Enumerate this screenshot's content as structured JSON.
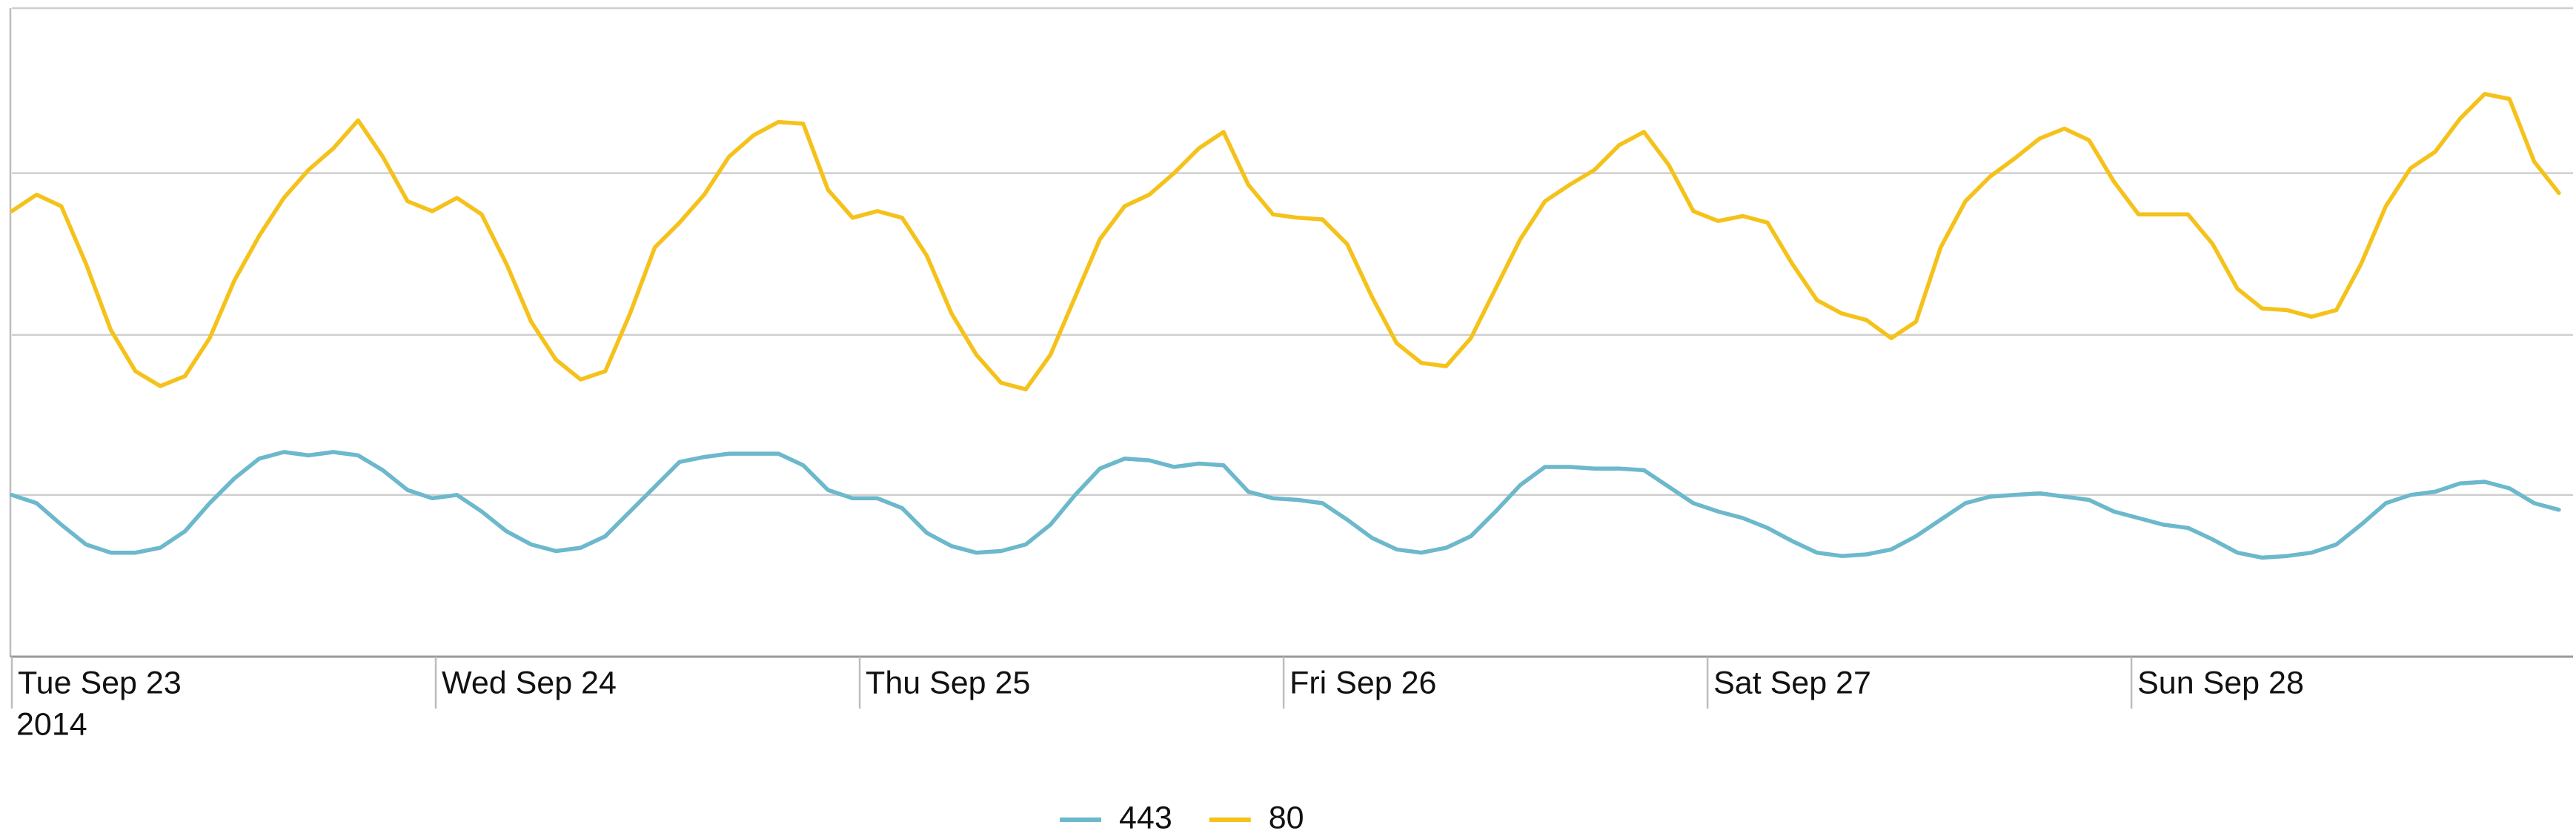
{
  "chart_data": {
    "type": "line",
    "x": [
      0,
      1.4,
      2.8,
      4.2,
      5.6,
      7,
      8.4,
      9.8,
      11.2,
      12.6,
      14,
      15.4,
      16.8,
      18.2,
      19.6,
      21,
      22.4,
      23.8,
      25.2,
      26.6,
      28,
      29.4,
      30.8,
      32.2,
      33.6,
      35,
      36.4,
      37.8,
      39.2,
      40.6,
      42,
      43.4,
      44.8,
      46.2,
      47.6,
      49,
      50.4,
      51.8,
      53.2,
      54.6,
      56,
      57.4,
      58.8,
      60.2,
      61.6,
      63,
      64.4,
      65.8,
      67.2,
      68.6,
      70,
      71.4,
      72.8,
      74.2,
      75.6,
      77,
      78.4,
      79.8,
      81.2,
      82.6,
      84,
      85.4,
      86.8,
      88.2,
      89.6,
      91,
      92.4,
      93.8,
      95.2,
      96.6,
      98,
      99.4,
      100.8,
      102.2,
      103.6,
      105,
      106.4,
      107.8,
      109.2,
      110.6,
      112,
      113.4,
      114.8,
      116.2,
      117.6,
      119,
      120.4,
      121.8,
      123.2,
      124.6,
      126,
      127.4,
      128.8,
      130.2,
      131.6,
      133,
      134.4,
      135.8,
      137.2,
      138.6,
      140,
      141.4,
      142.8,
      144.2
    ],
    "series": [
      {
        "name": "443",
        "color": "#6cb8cc",
        "values": [
          98,
          93,
          80,
          68,
          63,
          63,
          66,
          76,
          93,
          108,
          120,
          124,
          122,
          124,
          122,
          113,
          101,
          96,
          98,
          88,
          76,
          68,
          64,
          66,
          73,
          88,
          103,
          118,
          121,
          123,
          123,
          123,
          116,
          101,
          96,
          96,
          90,
          75,
          67,
          63,
          64,
          68,
          80,
          98,
          114,
          120,
          119,
          115,
          117,
          116,
          100,
          96,
          95,
          93,
          83,
          72,
          65,
          63,
          66,
          73,
          88,
          104,
          115,
          115,
          114,
          114,
          113,
          103,
          93,
          88,
          84,
          78,
          70,
          63,
          61,
          62,
          65,
          73,
          83,
          93,
          97,
          98,
          99,
          97,
          95,
          88,
          84,
          80,
          78,
          71,
          63,
          60,
          61,
          63,
          68,
          80,
          93,
          98,
          100,
          105,
          106,
          102,
          93,
          89
        ]
      },
      {
        "name": "80",
        "color": "#f5c21b",
        "values": [
          270,
          280,
          273,
          238,
          198,
          173,
          164,
          170,
          193,
          228,
          255,
          278,
          295,
          308,
          325,
          303,
          276,
          270,
          278,
          268,
          238,
          203,
          180,
          168,
          173,
          208,
          248,
          263,
          280,
          303,
          316,
          324,
          323,
          283,
          266,
          270,
          266,
          243,
          208,
          183,
          166,
          162,
          183,
          218,
          253,
          273,
          280,
          293,
          308,
          318,
          286,
          268,
          266,
          265,
          250,
          218,
          190,
          178,
          176,
          193,
          223,
          253,
          276,
          286,
          295,
          310,
          318,
          298,
          270,
          264,
          267,
          263,
          238,
          216,
          208,
          204,
          193,
          203,
          248,
          276,
          291,
          302,
          314,
          320,
          313,
          288,
          268,
          268,
          268,
          250,
          223,
          211,
          210,
          206,
          210,
          238,
          273,
          296,
          306,
          326,
          341,
          338,
          300,
          281
        ]
      }
    ],
    "xlim": [
      0,
      145
    ],
    "xticks": [
      {
        "value": 0,
        "label": "Tue Sep 23"
      },
      {
        "value": 24,
        "label": "Wed Sep 24"
      },
      {
        "value": 48,
        "label": "Thu Sep 25"
      },
      {
        "value": 72,
        "label": "Fri Sep 26"
      },
      {
        "value": 96,
        "label": "Sat Sep 27"
      },
      {
        "value": 120,
        "label": "Sun Sep 28"
      }
    ],
    "x_year_label": "2014",
    "ylim": [
      0,
      393
    ],
    "ygrid": [
      98,
      195,
      293,
      393
    ],
    "grid": true,
    "legend": "bottom"
  }
}
